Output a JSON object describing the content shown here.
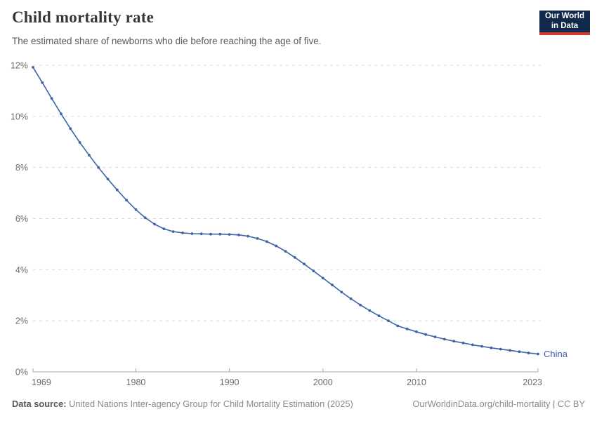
{
  "header": {
    "title": "Child mortality rate",
    "subtitle": "The estimated share of newborns who die before reaching the age of five.",
    "logo": {
      "line1": "Our World",
      "line2": "in Data",
      "bg_color": "#12294b",
      "accent_color": "#d23a2e"
    }
  },
  "chart_data": {
    "type": "line",
    "title": "Child mortality rate",
    "xlabel": "",
    "ylabel": "",
    "unit": "%",
    "grid": "horizontal-dashed",
    "legend_position": "end-of-line",
    "xlim": [
      1969,
      2023
    ],
    "ylim": [
      0,
      12
    ],
    "xticks": [
      1969,
      1980,
      1990,
      2000,
      2010,
      2023
    ],
    "yticks": [
      0,
      2,
      4,
      6,
      8,
      10,
      12
    ],
    "ytick_suffix": "%",
    "series": [
      {
        "name": "China",
        "color": "#3e64a8",
        "years": [
          1969,
          1970,
          1971,
          1972,
          1973,
          1974,
          1975,
          1976,
          1977,
          1978,
          1979,
          1980,
          1981,
          1982,
          1983,
          1984,
          1985,
          1986,
          1987,
          1988,
          1989,
          1990,
          1991,
          1992,
          1993,
          1994,
          1995,
          1996,
          1997,
          1998,
          1999,
          2000,
          2001,
          2002,
          2003,
          2004,
          2005,
          2006,
          2007,
          2008,
          2009,
          2010,
          2011,
          2012,
          2013,
          2014,
          2015,
          2016,
          2017,
          2018,
          2019,
          2020,
          2021,
          2022,
          2023
        ],
        "values": [
          11.92,
          11.32,
          10.7,
          10.1,
          9.52,
          8.98,
          8.48,
          8.0,
          7.55,
          7.12,
          6.72,
          6.35,
          6.03,
          5.78,
          5.6,
          5.49,
          5.44,
          5.41,
          5.4,
          5.39,
          5.39,
          5.38,
          5.36,
          5.31,
          5.22,
          5.1,
          4.93,
          4.72,
          4.48,
          4.22,
          3.95,
          3.67,
          3.4,
          3.12,
          2.86,
          2.62,
          2.4,
          2.19,
          2.0,
          1.8,
          1.68,
          1.57,
          1.46,
          1.37,
          1.28,
          1.2,
          1.13,
          1.06,
          1.0,
          0.94,
          0.89,
          0.84,
          0.79,
          0.74,
          0.7
        ]
      }
    ]
  },
  "footer": {
    "source_label": "Data source:",
    "source_text": " United Nations Inter-agency Group for Child Mortality Estimation (2025)",
    "link_text": "OurWorldinData.org/child-mortality | CC BY"
  },
  "colors": {
    "series_line": "#3e64a8",
    "grid_line": "#d9d9d9",
    "axis_line": "#a8a8a8",
    "tick_label": "#6e6e6e",
    "title": "#383838",
    "subtitle": "#5b5b5b",
    "footer_text": "#8a8a8a"
  }
}
